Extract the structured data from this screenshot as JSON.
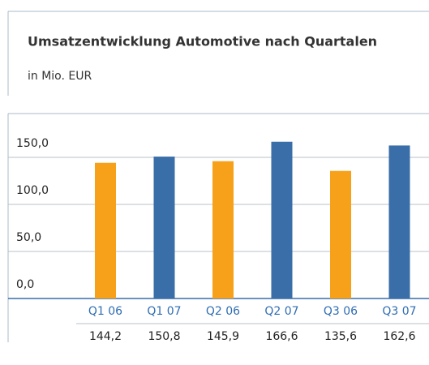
{
  "chart_data": {
    "type": "bar",
    "title": "Umsatzentwicklung Automotive nach Quartalen",
    "subtitle": "in Mio. EUR",
    "categories": [
      "Q1 06",
      "Q1 07",
      "Q2 06",
      "Q2 07",
      "Q3 06",
      "Q3 07"
    ],
    "values": [
      144.2,
      150.8,
      145.9,
      166.6,
      135.6,
      162.6
    ],
    "value_labels": [
      "144,2",
      "150,8",
      "145,9",
      "166,6",
      "135,6",
      "162,6"
    ],
    "colors": [
      "#f7a11a",
      "#3a6ea8",
      "#f7a11a",
      "#3a6ea8",
      "#f7a11a",
      "#3a6ea8"
    ],
    "ylim": [
      0,
      180
    ],
    "yticks": [
      {
        "value": 0,
        "label": "0,0"
      },
      {
        "value": 50,
        "label": "50,0"
      },
      {
        "value": 100,
        "label": "100,0"
      },
      {
        "value": 150,
        "label": "150,0"
      }
    ],
    "grid": true
  }
}
